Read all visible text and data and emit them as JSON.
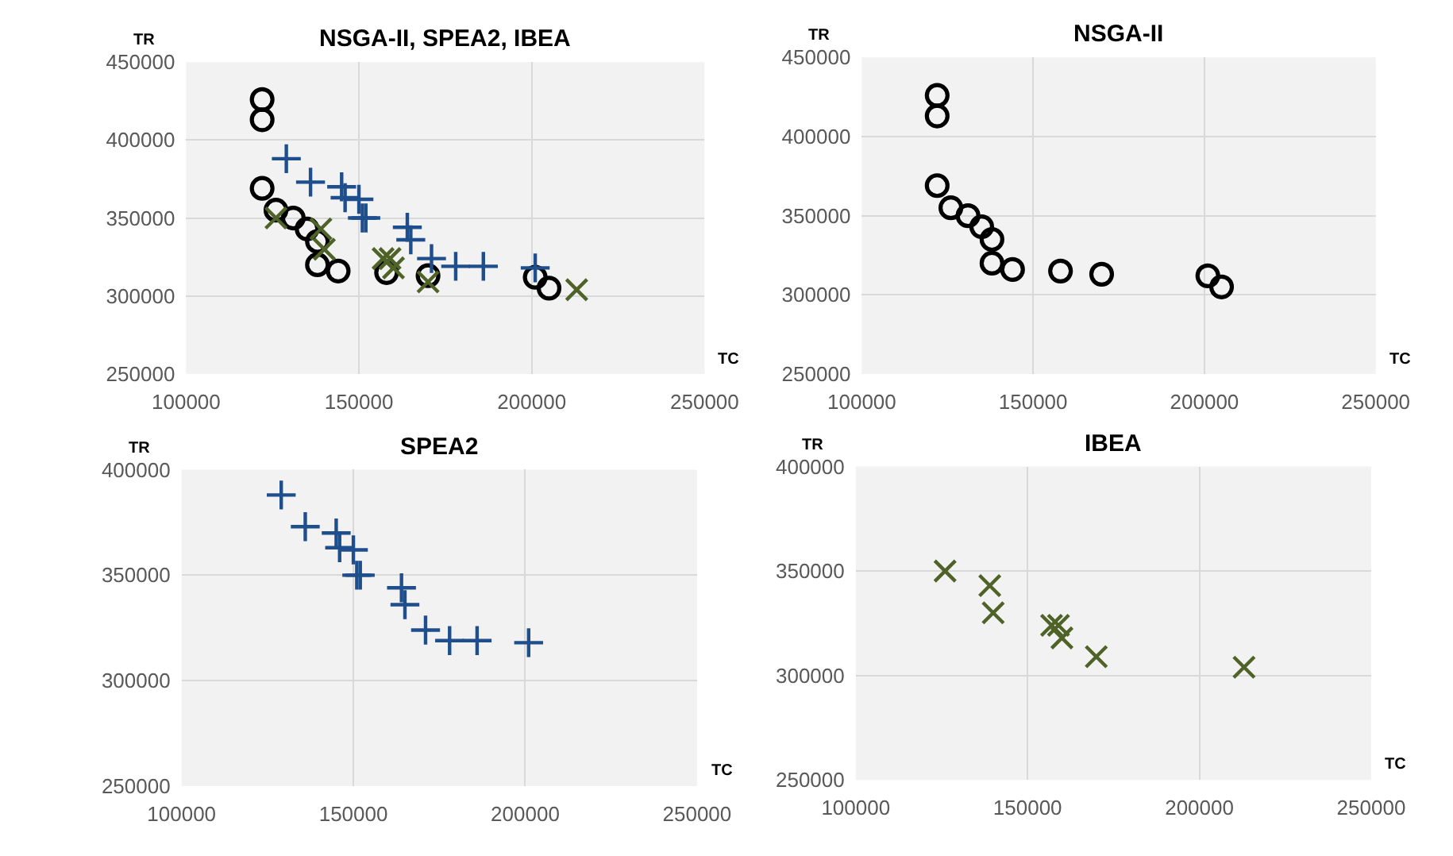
{
  "chart_data": [
    {
      "type": "scatter",
      "title": "NSGA-II, SPEA2, IBEA",
      "xlabel": "TC",
      "ylabel": "TR",
      "xlim": [
        100000,
        250000
      ],
      "xticks": [
        100000,
        150000,
        200000,
        250000
      ],
      "ylim": [
        250000,
        450000
      ],
      "yticks": [
        250000,
        300000,
        350000,
        400000,
        450000
      ],
      "grid": true,
      "series": [
        {
          "color": "#000000",
          "marker": "circle",
          "x": [
            122000,
            122000,
            122000,
            126000,
            131000,
            135000,
            138000,
            138000,
            144000,
            158000,
            170000,
            201000,
            205000
          ],
          "values": [
            426000,
            413000,
            369000,
            355000,
            350000,
            343000,
            335000,
            320000,
            316000,
            315000,
            313000,
            312000,
            305000
          ]
        },
        {
          "color": "#1f4e8c",
          "marker": "cross",
          "x": [
            129000,
            136000,
            145000,
            146000,
            150000,
            151000,
            152000,
            164000,
            165000,
            171000,
            178000,
            186000,
            201000
          ],
          "values": [
            388000,
            373000,
            370000,
            363000,
            362000,
            350000,
            350000,
            344000,
            336000,
            324000,
            319000,
            319000,
            318000
          ]
        },
        {
          "color": "#4f6228",
          "marker": "x",
          "x": [
            126000,
            139000,
            140000,
            157000,
            159000,
            160000,
            170000,
            213000
          ],
          "values": [
            350000,
            343000,
            330000,
            324000,
            324000,
            318000,
            309000,
            304000
          ]
        }
      ]
    },
    {
      "type": "scatter",
      "title": "NSGA-II",
      "xlabel": "TC",
      "ylabel": "TR",
      "xlim": [
        100000,
        250000
      ],
      "xticks": [
        100000,
        150000,
        200000,
        250000
      ],
      "ylim": [
        250000,
        450000
      ],
      "yticks": [
        250000,
        300000,
        350000,
        400000,
        450000
      ],
      "grid": true,
      "series": [
        {
          "color": "#000000",
          "marker": "circle",
          "x": [
            122000,
            122000,
            122000,
            126000,
            131000,
            135000,
            138000,
            138000,
            144000,
            158000,
            170000,
            201000,
            205000
          ],
          "values": [
            426000,
            413000,
            369000,
            355000,
            350000,
            343000,
            335000,
            320000,
            316000,
            315000,
            313000,
            312000,
            305000
          ]
        }
      ]
    },
    {
      "type": "scatter",
      "title": "SPEA2",
      "xlabel": "TC",
      "ylabel": "TR",
      "xlim": [
        100000,
        250000
      ],
      "xticks": [
        100000,
        150000,
        200000,
        250000
      ],
      "ylim": [
        250000,
        400000
      ],
      "yticks": [
        250000,
        300000,
        350000,
        400000
      ],
      "grid": true,
      "series": [
        {
          "color": "#1f4e8c",
          "marker": "cross",
          "x": [
            129000,
            136000,
            145000,
            146000,
            150000,
            151000,
            152000,
            164000,
            165000,
            171000,
            178000,
            186000,
            201000
          ],
          "values": [
            388000,
            373000,
            370000,
            363000,
            362000,
            350000,
            350000,
            344000,
            336000,
            324000,
            319000,
            319000,
            318000
          ]
        }
      ]
    },
    {
      "type": "scatter",
      "title": "IBEA",
      "xlabel": "TC",
      "ylabel": "TR",
      "xlim": [
        100000,
        250000
      ],
      "xticks": [
        100000,
        150000,
        200000,
        250000
      ],
      "ylim": [
        250000,
        400000
      ],
      "yticks": [
        250000,
        300000,
        350000,
        400000
      ],
      "grid": true,
      "series": [
        {
          "color": "#4f6228",
          "marker": "x",
          "x": [
            126000,
            139000,
            140000,
            157000,
            159000,
            160000,
            170000,
            213000
          ],
          "values": [
            350000,
            343000,
            330000,
            324000,
            324000,
            318000,
            309000,
            304000
          ]
        }
      ]
    }
  ]
}
